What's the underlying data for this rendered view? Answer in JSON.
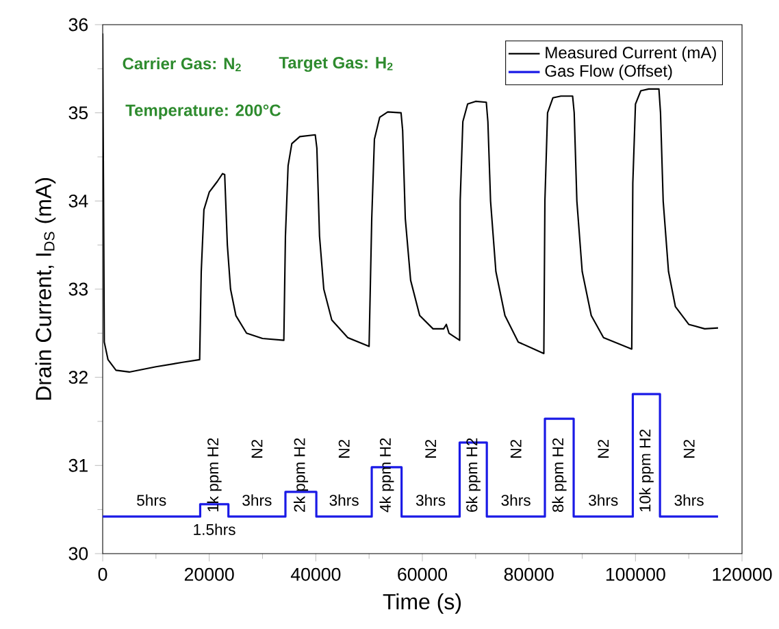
{
  "chart_data": {
    "type": "line",
    "xlabel": "Time (s)",
    "ylabel": "Drain Current, I$_{DS}$ (mA)",
    "xlim": [
      0,
      120000
    ],
    "ylim": [
      30,
      36
    ],
    "xticks": [
      0,
      20000,
      40000,
      60000,
      80000,
      100000,
      120000
    ],
    "yticks": [
      30,
      31,
      32,
      33,
      34,
      35,
      36
    ],
    "legend": "top right",
    "marker": "none",
    "line_style": "solid",
    "grid": false,
    "series": [
      {
        "name": "Measured Current (mA)",
        "color": "#000000",
        "x": [
          0,
          300,
          1000,
          2500,
          5000,
          10000,
          15000,
          18200,
          18500,
          19000,
          20000,
          21500,
          22500,
          22900,
          23400,
          24000,
          25000,
          27000,
          30000,
          34000,
          34300,
          34800,
          35500,
          37000,
          39900,
          40200,
          40700,
          41500,
          43000,
          46000,
          50000,
          50500,
          51000,
          52000,
          53500,
          56000,
          56300,
          56800,
          57800,
          59500,
          62000,
          64000,
          64500,
          65000,
          67000,
          67100,
          67600,
          68500,
          70000,
          72000,
          72300,
          72800,
          73800,
          75500,
          78000,
          82800,
          83000,
          83500,
          84500,
          86000,
          88200,
          88500,
          89000,
          90000,
          91700,
          94000,
          99300,
          99500,
          100000,
          101000,
          102500,
          104400,
          104700,
          105200,
          106200,
          107500,
          110000,
          113000,
          115500
        ],
        "values": [
          35.9,
          32.4,
          32.2,
          32.08,
          32.06,
          32.12,
          32.17,
          32.2,
          33.2,
          33.9,
          34.1,
          34.22,
          34.31,
          34.3,
          33.5,
          33.0,
          32.7,
          32.5,
          32.44,
          32.42,
          33.6,
          34.4,
          34.65,
          34.73,
          34.75,
          34.6,
          33.6,
          33.0,
          32.65,
          32.45,
          32.35,
          33.8,
          34.7,
          34.95,
          35.01,
          35.0,
          34.8,
          33.8,
          33.1,
          32.7,
          32.55,
          32.55,
          32.6,
          32.5,
          32.42,
          34.0,
          34.9,
          35.1,
          35.13,
          35.12,
          34.9,
          34.0,
          33.2,
          32.7,
          32.4,
          32.27,
          34.0,
          35.0,
          35.17,
          35.19,
          35.19,
          35.0,
          34.0,
          33.2,
          32.7,
          32.45,
          32.32,
          34.2,
          35.1,
          35.25,
          35.27,
          35.27,
          35.0,
          34.0,
          33.2,
          32.8,
          32.6,
          32.55,
          32.56
        ]
      },
      {
        "name": "Gas Flow (Offset)",
        "color": "#1a1ae6",
        "x": [
          0,
          18300,
          18300,
          23600,
          23600,
          34300,
          34300,
          40100,
          40100,
          50500,
          50500,
          56100,
          56100,
          67000,
          67000,
          72100,
          72100,
          83000,
          83000,
          88400,
          88400,
          99500,
          99500,
          104600,
          104600,
          115500
        ],
        "values": [
          30.42,
          30.42,
          30.56,
          30.56,
          30.42,
          30.42,
          30.7,
          30.7,
          30.42,
          30.42,
          30.98,
          30.98,
          30.42,
          30.42,
          31.26,
          31.26,
          30.42,
          30.42,
          31.53,
          31.53,
          30.42,
          30.42,
          31.81,
          31.81,
          30.42,
          30.42
        ]
      }
    ],
    "annotations": [
      "Carrier Gas: N$_{2}$",
      "Target Gas: H$_{2}$",
      "Temperature: 200°C",
      "5hrs",
      "1.5hrs",
      "1k ppm H2",
      "N2",
      "3hrs",
      "2k ppm H2",
      "N2",
      "3hrs",
      "4k ppm H2",
      "N2",
      "3hrs",
      "6k ppm H2",
      "N2",
      "3hrs",
      "8k ppm H2",
      "N2",
      "3hrs",
      "10k ppm H2",
      "N2",
      "3hrs"
    ]
  }
}
